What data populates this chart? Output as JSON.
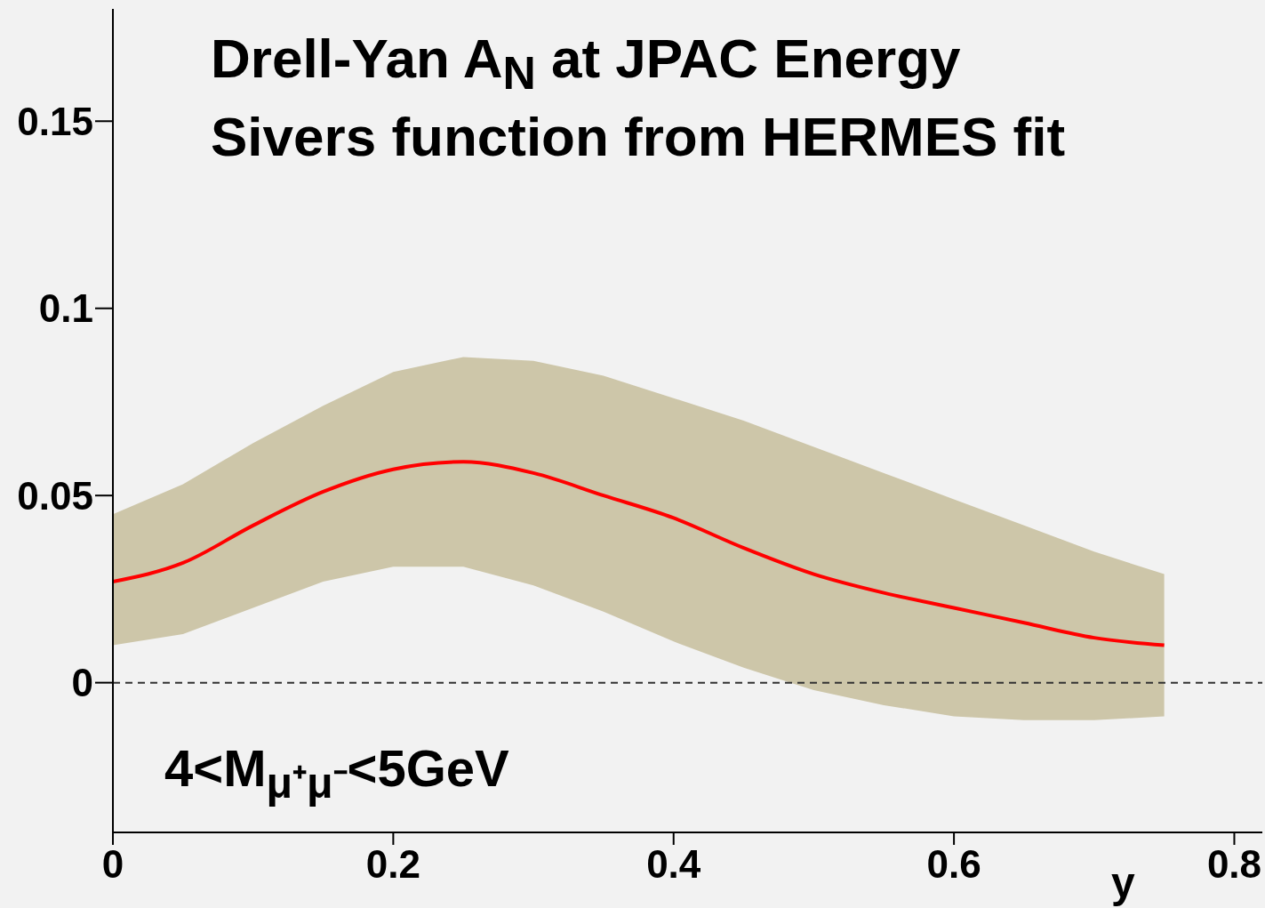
{
  "chart_data": {
    "type": "line",
    "title": "Drell-Yan A$_{N}$ at JPAC Energy",
    "subtitle": "Sivers function from HERMES fit",
    "xlabel": "y",
    "annotations": [
      "4<M$_{μ⁺μ⁻}$<5GeV"
    ],
    "x": [
      0,
      0.05,
      0.1,
      0.15,
      0.2,
      0.25,
      0.3,
      0.35,
      0.4,
      0.45,
      0.5,
      0.55,
      0.6,
      0.65,
      0.7,
      0.75
    ],
    "series": [
      {
        "color": "#ff0000",
        "values": [
          0.027,
          0.032,
          0.042,
          0.051,
          0.057,
          0.059,
          0.056,
          0.05,
          0.044,
          0.036,
          0.029,
          0.024,
          0.02,
          0.016,
          0.012,
          0.01
        ],
        "lower": [
          0.01,
          0.013,
          0.02,
          0.027,
          0.031,
          0.031,
          0.026,
          0.019,
          0.011,
          0.004,
          -0.002,
          -0.006,
          -0.009,
          -0.01,
          -0.01,
          -0.009
        ],
        "upper": [
          0.045,
          0.053,
          0.064,
          0.074,
          0.083,
          0.087,
          0.086,
          0.082,
          0.076,
          0.07,
          0.063,
          0.056,
          0.049,
          0.042,
          0.035,
          0.029
        ]
      }
    ],
    "xlim": [
      0,
      0.82
    ],
    "xticks": [
      0,
      0.2,
      0.4,
      0.6,
      0.8
    ],
    "ylim": [
      -0.04,
      0.18
    ],
    "yticks": [
      0,
      0.05,
      0.1,
      0.15
    ],
    "ref_lines": [
      {
        "axis": "y",
        "value": 0,
        "line_style": "dashed",
        "color": "#333333"
      }
    ],
    "grid": false,
    "marker": "none",
    "line_style": "solid"
  }
}
